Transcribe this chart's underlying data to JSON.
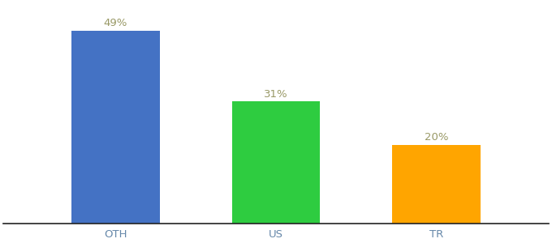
{
  "categories": [
    "OTH",
    "US",
    "TR"
  ],
  "values": [
    49,
    31,
    20
  ],
  "labels": [
    "49%",
    "31%",
    "20%"
  ],
  "bar_colors": [
    "#4472C4",
    "#2ECC40",
    "#FFA500"
  ],
  "background_color": "#ffffff",
  "ylim": [
    0,
    56
  ],
  "bar_width": 0.55,
  "label_fontsize": 9.5,
  "tick_fontsize": 9.5,
  "label_color": "#999966",
  "tick_color": "#6688aa",
  "spine_color": "#222222"
}
